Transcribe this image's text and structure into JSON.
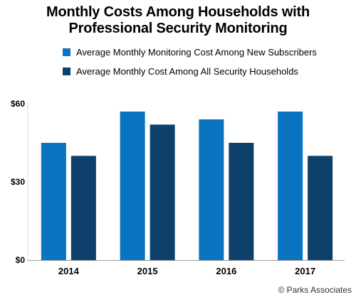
{
  "title": {
    "line1": "Monthly Costs Among Households with",
    "line2": "Professional Security Monitoring"
  },
  "source": "© Parks Associates",
  "colors": {
    "new_subscribers": "#0a74c0",
    "all_households": "#0d416b",
    "axis": "#9a9a9a"
  },
  "chart_data": {
    "type": "bar",
    "title": "Monthly Costs Among Households with Professional Security Monitoring",
    "categories": [
      "2014",
      "2015",
      "2016",
      "2017"
    ],
    "series": [
      {
        "name": "Average Monthly Monitoring Cost Among New Subscribers",
        "values": [
          45,
          57,
          54,
          57
        ]
      },
      {
        "name": "Average Monthly Cost Among All Security Households",
        "values": [
          40,
          52,
          45,
          40
        ]
      }
    ],
    "yticks": [
      "$0",
      "$30",
      "$60"
    ],
    "ytick_values": [
      0,
      30,
      60
    ],
    "ylim": [
      0,
      60
    ],
    "grid": false,
    "legend_position": "top"
  }
}
